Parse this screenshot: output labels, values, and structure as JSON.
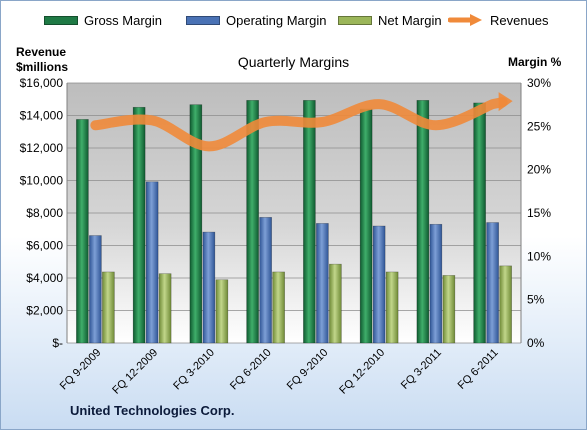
{
  "legend": [
    {
      "label": "Gross Margin",
      "color": "#1f7a45",
      "type": "bar"
    },
    {
      "label": "Operating Margin",
      "color": "#4a72b5",
      "type": "bar"
    },
    {
      "label": "Net Margin",
      "color": "#9bb659",
      "type": "bar"
    },
    {
      "label": "Revenues",
      "color": "#f08a3a",
      "type": "arrow"
    }
  ],
  "left_axis_title": [
    "Revenue",
    "$millions"
  ],
  "right_axis_title": "Margin  %",
  "company": "United Technologies Corp.",
  "chart_data": {
    "type": "bar",
    "title": "Quarterly Margins",
    "categories": [
      "FQ 9-2009",
      "FQ 12-2009",
      "FQ 3-2010",
      "FQ 6-2010",
      "FQ 9-2010",
      "FQ 12-2010",
      "FQ 3-2011",
      "FQ 6-2011"
    ],
    "series": [
      {
        "name": "Gross Margin",
        "axis": "right",
        "color": "#1f7a45",
        "values": [
          25.8,
          27.2,
          27.5,
          28.0,
          28.0,
          27.0,
          28.0,
          27.7
        ]
      },
      {
        "name": "Operating Margin",
        "axis": "right",
        "color": "#4a72b5",
        "values": [
          12.4,
          18.6,
          12.8,
          14.5,
          13.8,
          13.5,
          13.7,
          13.9
        ]
      },
      {
        "name": "Net Margin",
        "axis": "right",
        "color": "#9bb659",
        "values": [
          8.2,
          8.0,
          7.3,
          8.2,
          9.1,
          8.2,
          7.8,
          8.9
        ]
      },
      {
        "name": "Revenues",
        "axis": "left",
        "type": "line",
        "color": "#f08a3a",
        "values": [
          13400,
          13700,
          12100,
          13600,
          13600,
          14700,
          13400,
          14700
        ]
      }
    ],
    "left_axis": {
      "range": [
        0,
        16000
      ],
      "ticks": [
        "$-",
        "$2,000",
        "$4,000",
        "$6,000",
        "$8,000",
        "$10,000",
        "$12,000",
        "$14,000",
        "$16,000"
      ]
    },
    "right_axis": {
      "range": [
        0,
        30
      ],
      "ticks": [
        "0%",
        "5%",
        "10%",
        "15%",
        "20%",
        "25%",
        "30%"
      ]
    },
    "grid": true
  }
}
